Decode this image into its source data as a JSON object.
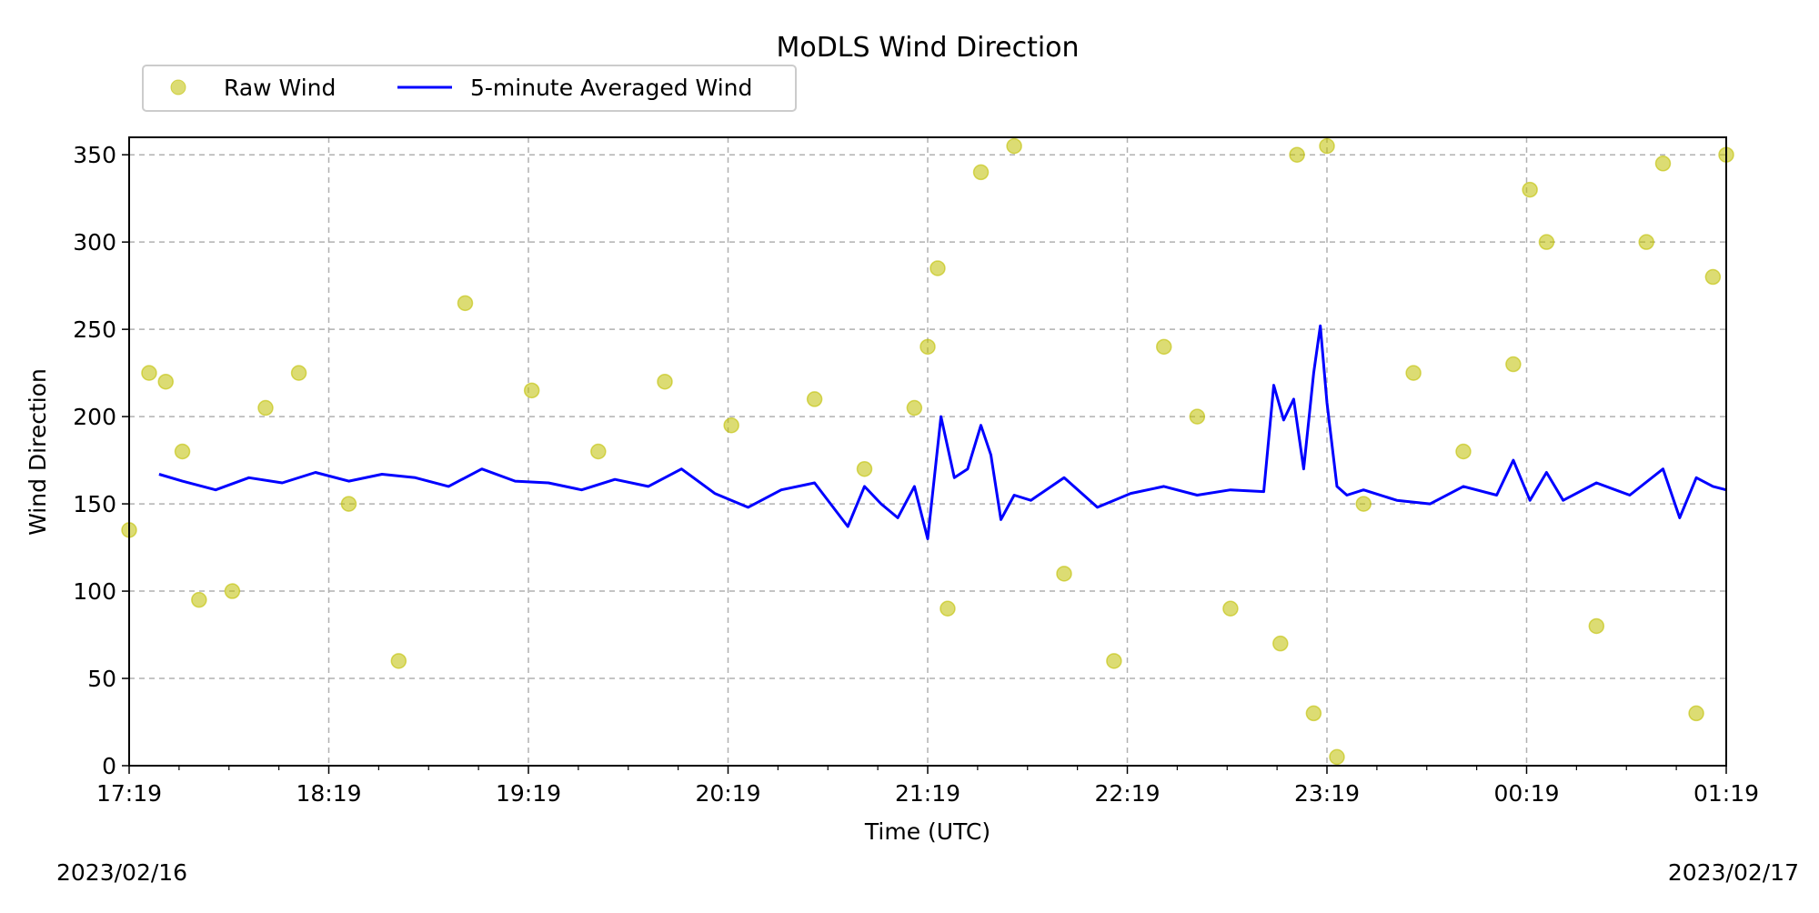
{
  "chart_data": {
    "type": "line",
    "title": "MoDLS Wind Direction",
    "xlabel": "Time (UTC)",
    "ylabel": "Wind Direction",
    "xlim": [
      "2023-02-16 17:19",
      "2023-02-17 01:19"
    ],
    "ylim": [
      0,
      360
    ],
    "x_ticks": [
      "17:19",
      "18:19",
      "19:19",
      "20:19",
      "21:19",
      "22:19",
      "23:19",
      "00:19",
      "01:19"
    ],
    "y_ticks": [
      0,
      50,
      100,
      150,
      200,
      250,
      300,
      350
    ],
    "start_date_label": "2023/02/16",
    "end_date_label": "2023/02/17",
    "grid": true,
    "legend_position": "top-left, above plot",
    "series": [
      {
        "name": "Raw Wind",
        "style": "scatter",
        "color": "#bfbf00",
        "x": [
          "17:19",
          "17:25",
          "17:30",
          "17:35",
          "17:40",
          "17:50",
          "18:00",
          "18:10",
          "18:25",
          "18:40",
          "19:00",
          "19:20",
          "19:40",
          "20:00",
          "20:20",
          "20:45",
          "21:00",
          "21:15",
          "21:19",
          "21:22",
          "21:25",
          "21:35",
          "21:45",
          "22:00",
          "22:15",
          "22:30",
          "22:40",
          "22:50",
          "23:05",
          "23:10",
          "23:15",
          "23:19",
          "23:22",
          "23:30",
          "23:45",
          "00:00",
          "00:15",
          "00:20",
          "00:25",
          "00:40",
          "00:55",
          "01:00",
          "01:10",
          "01:15",
          "01:19"
        ],
        "y": [
          135,
          225,
          220,
          180,
          95,
          100,
          205,
          225,
          150,
          60,
          265,
          215,
          180,
          220,
          195,
          210,
          170,
          205,
          240,
          285,
          90,
          340,
          355,
          110,
          60,
          240,
          200,
          90,
          70,
          350,
          30,
          355,
          5,
          150,
          225,
          180,
          230,
          330,
          300,
          80,
          300,
          345,
          30,
          280,
          350
        ]
      },
      {
        "name": "5-minute Averaged Wind",
        "style": "line",
        "color": "#0000ff",
        "x": [
          "17:28",
          "17:35",
          "17:45",
          "17:55",
          "18:05",
          "18:15",
          "18:25",
          "18:35",
          "18:45",
          "18:55",
          "19:05",
          "19:15",
          "19:25",
          "19:35",
          "19:45",
          "19:55",
          "20:05",
          "20:15",
          "20:25",
          "20:35",
          "20:45",
          "20:55",
          "21:00",
          "21:05",
          "21:10",
          "21:15",
          "21:19",
          "21:23",
          "21:27",
          "21:31",
          "21:35",
          "21:38",
          "21:41",
          "21:45",
          "21:50",
          "22:00",
          "22:10",
          "22:20",
          "22:30",
          "22:40",
          "22:50",
          "23:00",
          "23:03",
          "23:06",
          "23:09",
          "23:12",
          "23:15",
          "23:17",
          "23:19",
          "23:22",
          "23:25",
          "23:30",
          "23:40",
          "23:50",
          "00:00",
          "00:10",
          "00:15",
          "00:20",
          "00:25",
          "00:30",
          "00:40",
          "00:50",
          "01:00",
          "01:05",
          "01:10",
          "01:15",
          "01:19"
        ],
        "y": [
          167,
          163,
          158,
          165,
          162,
          168,
          163,
          167,
          165,
          160,
          170,
          163,
          162,
          158,
          164,
          160,
          170,
          156,
          148,
          158,
          162,
          137,
          160,
          150,
          142,
          160,
          130,
          200,
          165,
          170,
          195,
          178,
          141,
          155,
          152,
          165,
          148,
          156,
          160,
          155,
          158,
          157,
          218,
          198,
          210,
          170,
          225,
          252,
          208,
          160,
          155,
          158,
          152,
          150,
          160,
          155,
          175,
          152,
          168,
          152,
          162,
          155,
          170,
          142,
          165,
          160,
          158
        ]
      }
    ]
  }
}
